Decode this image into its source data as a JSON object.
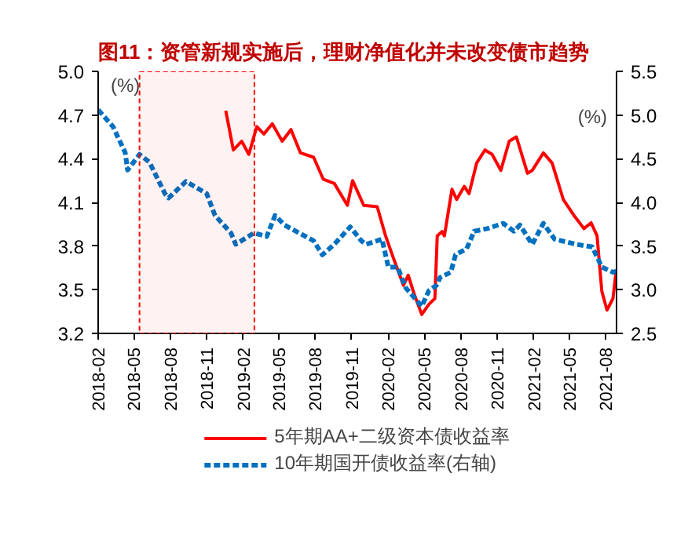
{
  "chart_data": {
    "type": "line",
    "title": "图11：资管新规实施后，理财净值化并未改变债市趋势",
    "ylabel": "(%)",
    "y2label": "(%)",
    "xlim": [
      "2018-02-01",
      "2021-08-28"
    ],
    "xticks": [
      "2018-02",
      "2018-05",
      "2018-08",
      "2018-11",
      "2019-02",
      "2019-05",
      "2019-08",
      "2019-11",
      "2020-02",
      "2020-05",
      "2020-08",
      "2020-11",
      "2021-02",
      "2021-05",
      "2021-08"
    ],
    "ylim": [
      3.2,
      5.0
    ],
    "yticks": [
      3.2,
      3.5,
      3.8,
      4.1,
      4.4,
      4.7,
      {
        "value": 5,
        "label": "5.0"
      }
    ],
    "y2lim": [
      2.5,
      5.5
    ],
    "y2ticks": [
      2.5,
      {
        "value": 3,
        "label": "3.0"
      },
      3.5,
      {
        "value": 4,
        "label": "4.0"
      },
      4.5,
      {
        "value": 5,
        "label": "5.0"
      },
      5.5
    ],
    "grid": false,
    "legend": "bottom",
    "marker": "none",
    "bands": [
      {
        "axis": "x",
        "from": "2018-05-16",
        "to": "2019-03-01",
        "color": "#ff0000"
      }
    ],
    "series": [
      {
        "name": "5年期AA+二级资本债收益率",
        "color": "#ff0000",
        "line_style": "solid",
        "x": [
          "2018-12-19",
          "2019-01-07",
          "2019-01-28",
          "2019-02-15",
          "2019-03-07",
          "2019-03-25",
          "2019-04-15",
          "2019-05-10",
          "2019-06-01",
          "2019-06-25",
          "2019-07-28",
          "2019-08-21",
          "2019-09-18",
          "2019-10-21",
          "2019-11-03",
          "2019-12-01",
          "2020-01-04",
          "2020-01-25",
          "2020-02-12",
          "2020-03-10",
          "2020-03-22",
          "2020-04-06",
          "2020-04-25",
          "2020-05-13",
          "2020-05-28",
          "2020-06-03",
          "2020-06-15",
          "2020-06-21",
          "2020-07-10",
          "2020-07-22",
          "2020-08-10",
          "2020-08-22",
          "2020-09-10",
          "2020-10-01",
          "2020-10-19",
          "2020-11-10",
          "2020-12-01",
          "2020-12-19",
          "2021-01-16",
          "2021-01-28",
          "2021-02-25",
          "2021-03-19",
          "2021-04-16",
          "2021-05-13",
          "2021-06-07",
          "2021-06-25",
          "2021-07-10",
          "2021-07-22",
          "2021-08-04",
          "2021-08-19",
          "2021-08-27"
        ],
        "values": [
          4.73,
          4.46,
          4.52,
          4.43,
          4.62,
          4.57,
          4.64,
          4.52,
          4.6,
          4.44,
          4.41,
          4.26,
          4.23,
          4.08,
          4.25,
          4.08,
          4.07,
          3.87,
          3.73,
          3.53,
          3.6,
          3.47,
          3.33,
          3.4,
          3.44,
          3.87,
          3.9,
          3.87,
          4.19,
          4.12,
          4.21,
          4.16,
          4.37,
          4.46,
          4.43,
          4.32,
          4.52,
          4.55,
          4.3,
          4.32,
          4.44,
          4.37,
          4.12,
          4.01,
          3.92,
          3.96,
          3.87,
          3.49,
          3.36,
          3.44,
          3.63
        ]
      },
      {
        "name": "10年期国开债收益率(右轴)",
        "color": "#0070c0",
        "line_style": "dashed",
        "axis": "y2",
        "x": [
          "2018-02-01",
          "2018-03-10",
          "2018-04-10",
          "2018-04-16",
          "2018-05-16",
          "2018-06-10",
          "2018-07-19",
          "2018-07-28",
          "2018-09-10",
          "2018-11-01",
          "2018-11-22",
          "2019-01-01",
          "2019-01-13",
          "2019-02-28",
          "2019-04-01",
          "2019-04-22",
          "2019-05-16",
          "2019-07-28",
          "2019-08-19",
          "2019-09-18",
          "2019-10-28",
          "2019-11-25",
          "2019-12-07",
          "2020-01-16",
          "2020-02-01",
          "2020-02-24",
          "2020-03-16",
          "2020-04-25",
          "2020-05-13",
          "2020-06-01",
          "2020-06-10",
          "2020-07-07",
          "2020-07-19",
          "2020-08-16",
          "2020-09-04",
          "2020-10-07",
          "2020-11-16",
          "2020-12-13",
          "2020-12-28",
          "2021-01-28",
          "2021-02-25",
          "2021-03-25",
          "2021-05-19",
          "2021-06-28",
          "2021-07-22",
          "2021-08-19",
          "2021-08-27"
        ],
        "values": [
          5.06,
          4.87,
          4.57,
          4.37,
          4.55,
          4.46,
          4.1,
          4.05,
          4.24,
          4.1,
          3.85,
          3.65,
          3.52,
          3.65,
          3.61,
          3.85,
          3.74,
          3.56,
          3.4,
          3.52,
          3.72,
          3.56,
          3.52,
          3.58,
          3.26,
          3.26,
          3.02,
          2.81,
          2.99,
          3.05,
          3.14,
          3.2,
          3.4,
          3.47,
          3.67,
          3.7,
          3.76,
          3.67,
          3.74,
          3.52,
          3.76,
          3.58,
          3.52,
          3.49,
          3.26,
          3.2,
          3.21
        ]
      }
    ]
  }
}
